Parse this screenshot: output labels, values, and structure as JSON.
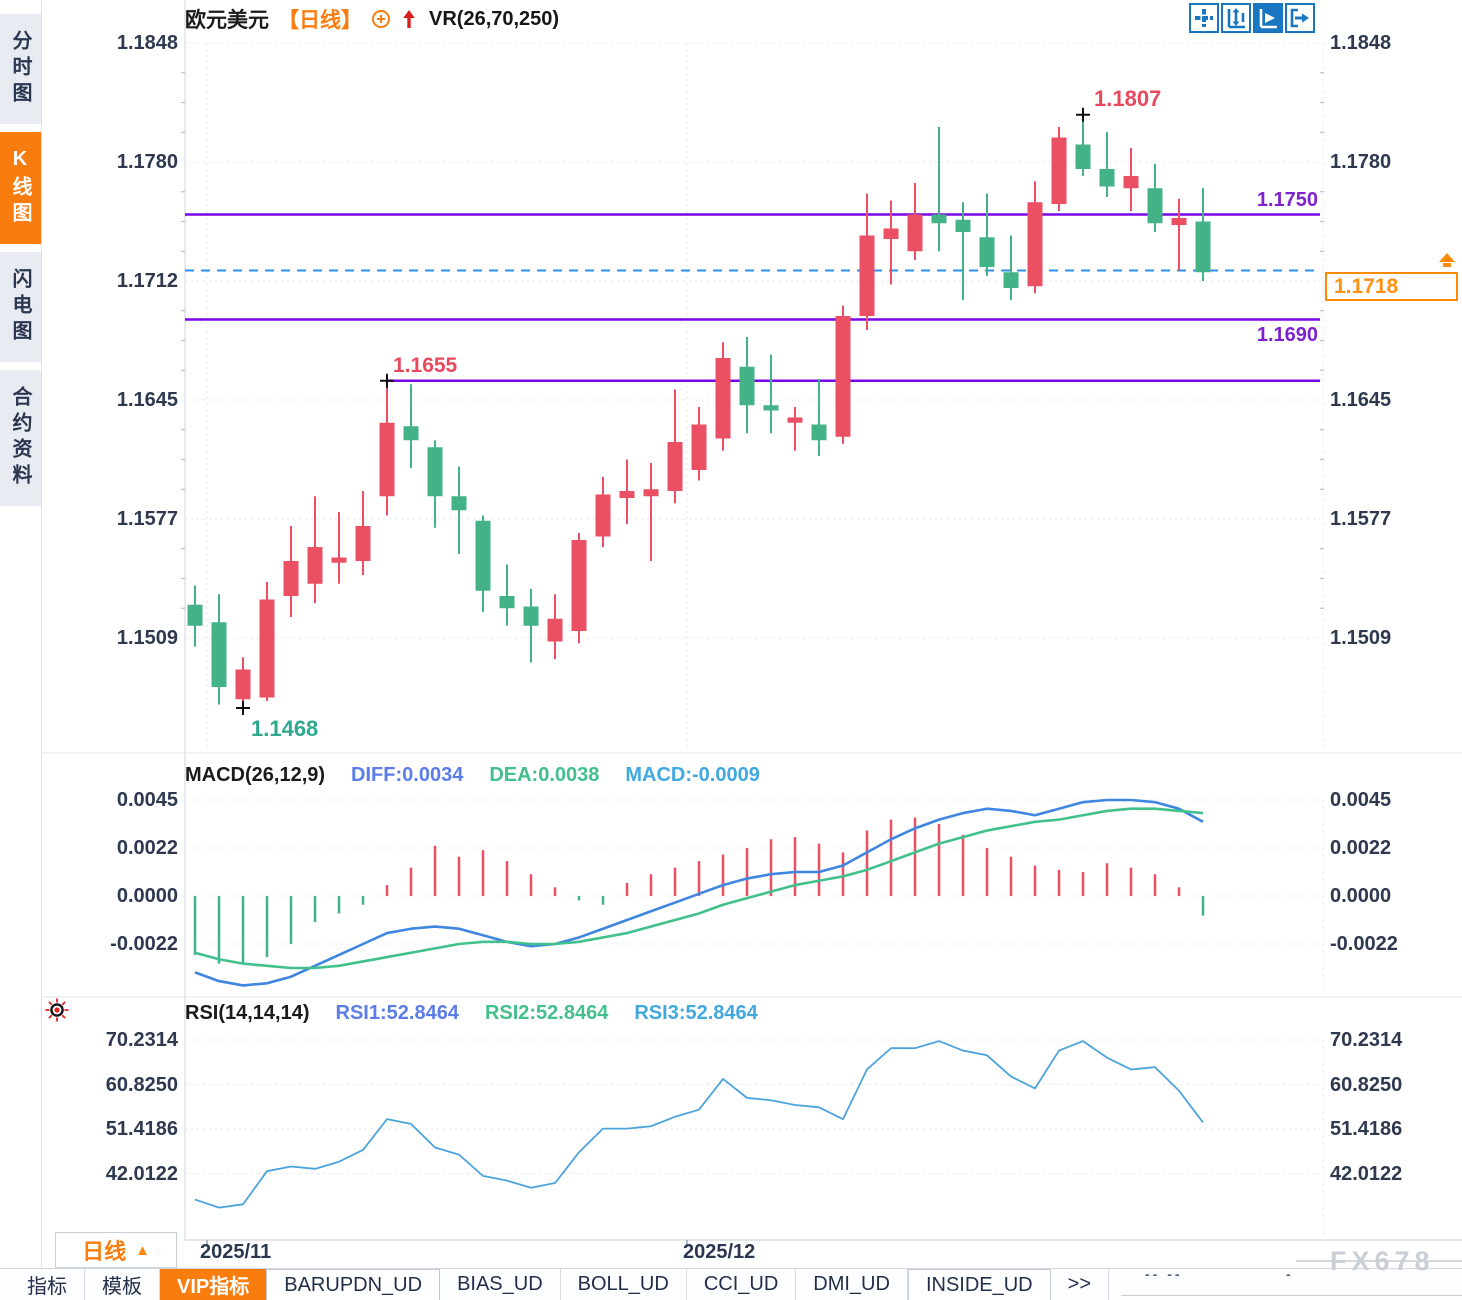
{
  "app": {
    "symbol": "欧元美元",
    "period_tag": "【日线】",
    "vr_label": "VR(26,70,250)",
    "watermark": "FX678"
  },
  "sidebar": {
    "items": [
      {
        "label": "分时图",
        "active": false
      },
      {
        "label": "K线图",
        "active": true
      },
      {
        "label": "闪电图",
        "active": false
      },
      {
        "label": "合约资料",
        "active": false
      }
    ]
  },
  "toolbar_icons": [
    {
      "name": "pan-crosshair-icon",
      "active": false
    },
    {
      "name": "fit-y-axis-icon",
      "active": false
    },
    {
      "name": "auto-scale-icon",
      "active": true
    },
    {
      "name": "jump-to-latest-icon",
      "active": false
    }
  ],
  "price_box": {
    "value": "1.1718"
  },
  "timeframe_button": {
    "label": "日线",
    "arrow": "▲"
  },
  "bottom_tabs": [
    {
      "label": "指标"
    },
    {
      "label": "模板"
    },
    {
      "label": "VIP指标",
      "active": true
    },
    {
      "label": "BARUPDN_UD"
    },
    {
      "label": "BIAS_UD"
    },
    {
      "label": "BOLL_UD"
    },
    {
      "label": "CCI_UD"
    },
    {
      "label": "DMI_UD"
    },
    {
      "label": "INSIDE_UD"
    },
    {
      "label": ">>"
    }
  ],
  "stray_marks": [
    {
      "text": "-- --"
    },
    {
      "text": "-"
    }
  ],
  "chart_data": {
    "type": "candlestick",
    "title": "欧元美元 日线 (EUR/USD daily)",
    "x_axis": {
      "labels": [
        {
          "text": "2025/11",
          "grid_index": 0.5
        },
        {
          "text": "2025/12",
          "grid_index": 20.5
        }
      ]
    },
    "main": {
      "y_ticks": [
        "1.1848",
        "1.1780",
        "1.1712",
        "1.1645",
        "1.1577",
        "1.1509"
      ],
      "ylim": [
        1.1448,
        1.1848
      ],
      "candles": [
        [
          1.1527,
          1.1538,
          1.1503,
          1.1515
        ],
        [
          1.1517,
          1.1533,
          1.147,
          1.148
        ],
        [
          1.1473,
          1.1497,
          1.1468,
          1.149
        ],
        [
          1.1474,
          1.154,
          1.1472,
          1.153
        ],
        [
          1.1532,
          1.1572,
          1.152,
          1.1552
        ],
        [
          1.1539,
          1.1589,
          1.1528,
          1.156
        ],
        [
          1.1551,
          1.158,
          1.1539,
          1.1554
        ],
        [
          1.1552,
          1.1592,
          1.1544,
          1.1572
        ],
        [
          1.1589,
          1.1655,
          1.1578,
          1.1631
        ],
        [
          1.1629,
          1.1653,
          1.1605,
          1.1621
        ],
        [
          1.1617,
          1.1621,
          1.1571,
          1.1589
        ],
        [
          1.1589,
          1.1606,
          1.1556,
          1.1581
        ],
        [
          1.1575,
          1.1578,
          1.1523,
          1.1535
        ],
        [
          1.1532,
          1.155,
          1.1515,
          1.1525
        ],
        [
          1.1526,
          1.1536,
          1.1494,
          1.1515
        ],
        [
          1.1506,
          1.1533,
          1.1496,
          1.1519
        ],
        [
          1.1512,
          1.1568,
          1.1505,
          1.1564
        ],
        [
          1.1566,
          1.16,
          1.156,
          1.159
        ],
        [
          1.1588,
          1.161,
          1.1573,
          1.1592
        ],
        [
          1.1589,
          1.1608,
          1.1552,
          1.1593
        ],
        [
          1.1592,
          1.165,
          1.1585,
          1.162
        ],
        [
          1.1604,
          1.164,
          1.1598,
          1.163
        ],
        [
          1.1622,
          1.1677,
          1.1615,
          1.1668
        ],
        [
          1.1663,
          1.168,
          1.1625,
          1.1641
        ],
        [
          1.1641,
          1.167,
          1.1625,
          1.1638
        ],
        [
          1.1631,
          1.164,
          1.1615,
          1.1634
        ],
        [
          1.163,
          1.1656,
          1.1612,
          1.1621
        ],
        [
          1.1623,
          1.1698,
          1.1619,
          1.1692
        ],
        [
          1.1692,
          1.1762,
          1.1684,
          1.1738
        ],
        [
          1.1736,
          1.1758,
          1.171,
          1.1742
        ],
        [
          1.1729,
          1.1768,
          1.1724,
          1.175
        ],
        [
          1.175,
          1.18,
          1.1729,
          1.1745
        ],
        [
          1.1747,
          1.1757,
          1.1701,
          1.174
        ],
        [
          1.1737,
          1.1762,
          1.1715,
          1.172
        ],
        [
          1.1717,
          1.1738,
          1.1701,
          1.1708
        ],
        [
          1.1709,
          1.1769,
          1.1705,
          1.1757
        ],
        [
          1.1756,
          1.18,
          1.1752,
          1.1794
        ],
        [
          1.179,
          1.1807,
          1.1772,
          1.1776
        ],
        [
          1.1776,
          1.1797,
          1.176,
          1.1766
        ],
        [
          1.1765,
          1.1788,
          1.1752,
          1.1772
        ],
        [
          1.1765,
          1.1779,
          1.174,
          1.1745
        ],
        [
          1.1744,
          1.1759,
          1.1718,
          1.1748
        ],
        [
          1.1746,
          1.1765,
          1.1712,
          1.1717
        ]
      ],
      "levels": [
        {
          "price": 1.175,
          "style": "solid",
          "color": "purple",
          "label": "1.1750"
        },
        {
          "price": 1.169,
          "style": "solid",
          "color": "purple",
          "label": "1.1690"
        },
        {
          "price": 1.1655,
          "style": "solid",
          "color": "purple",
          "label": "",
          "start_index": 8
        },
        {
          "price": 1.1718,
          "style": "dashed",
          "color": "blue",
          "label": ""
        }
      ],
      "annotations": [
        {
          "text": "1.1807",
          "index": 37,
          "price": 1.1807,
          "position": "high"
        },
        {
          "text": "1.1655",
          "index": 8,
          "price": 1.1655,
          "position": "high"
        },
        {
          "text": "1.1468",
          "index": 2,
          "price": 1.1468,
          "position": "low"
        }
      ],
      "last_price": 1.1718
    },
    "macd": {
      "header": {
        "name": "MACD(26,12,9)",
        "diff": "DIFF:0.0034",
        "dea": "DEA:0.0038",
        "macd": "MACD:-0.0009"
      },
      "y_ticks": [
        "0.0045",
        "0.0022",
        "0.0000",
        "-0.0022"
      ],
      "histogram": [
        -0.0027,
        -0.0031,
        -0.0031,
        -0.0028,
        -0.0022,
        -0.0012,
        -0.0008,
        -0.0004,
        0.0005,
        0.0013,
        0.0023,
        0.0018,
        0.0021,
        0.0016,
        0.001,
        0.0004,
        -0.0002,
        -0.0004,
        0.0006,
        0.001,
        0.0013,
        0.0016,
        0.0019,
        0.0022,
        0.0026,
        0.0027,
        0.0024,
        0.002,
        0.003,
        0.0035,
        0.0036,
        0.0033,
        0.0028,
        0.0022,
        0.0018,
        0.0014,
        0.0012,
        0.0011,
        0.0015,
        0.0013,
        0.001,
        0.0004,
        -0.0009
      ],
      "diff": [
        -0.0035,
        -0.0039,
        -0.0041,
        -0.004,
        -0.0037,
        -0.0032,
        -0.0027,
        -0.0022,
        -0.0017,
        -0.0015,
        -0.0014,
        -0.0015,
        -0.0018,
        -0.0021,
        -0.0023,
        -0.0022,
        -0.0019,
        -0.0015,
        -0.0011,
        -0.0007,
        -0.0003,
        0.0001,
        0.0005,
        0.0008,
        0.001,
        0.0011,
        0.0011,
        0.0014,
        0.002,
        0.0026,
        0.0031,
        0.0035,
        0.0038,
        0.004,
        0.0039,
        0.0037,
        0.004,
        0.0043,
        0.0044,
        0.0044,
        0.0043,
        0.004,
        0.0034
      ],
      "dea": [
        -0.0026,
        -0.0029,
        -0.0031,
        -0.0032,
        -0.0033,
        -0.0033,
        -0.0032,
        -0.003,
        -0.0028,
        -0.0026,
        -0.0024,
        -0.0022,
        -0.0021,
        -0.0021,
        -0.0022,
        -0.0022,
        -0.0021,
        -0.0019,
        -0.0017,
        -0.0014,
        -0.0011,
        -0.0008,
        -0.0004,
        -0.0001,
        0.0002,
        0.0005,
        0.0007,
        0.0009,
        0.0012,
        0.0016,
        0.002,
        0.0024,
        0.0027,
        0.003,
        0.0032,
        0.0034,
        0.0035,
        0.0037,
        0.0039,
        0.004,
        0.004,
        0.0039,
        0.0038
      ]
    },
    "rsi": {
      "header": {
        "name": "RSI(14,14,14)",
        "rsi1": "RSI1:52.8464",
        "rsi2": "RSI2:52.8464",
        "rsi3": "RSI3:52.8464"
      },
      "y_ticks": [
        "70.2314",
        "60.8250",
        "51.4186",
        "42.0122"
      ],
      "rsi1": [
        36.5,
        34.8,
        35.5,
        42.5,
        43.5,
        43.0,
        44.5,
        47.0,
        53.5,
        52.5,
        47.5,
        46.0,
        41.5,
        40.5,
        39.0,
        40.0,
        46.5,
        51.5,
        51.5,
        52.0,
        54.0,
        55.5,
        62.0,
        58.0,
        57.5,
        56.5,
        56.0,
        53.5,
        64.0,
        68.5,
        68.5,
        70.0,
        68.0,
        67.0,
        62.5,
        60.0,
        68.0,
        70.0,
        66.5,
        64.0,
        64.5,
        59.5,
        52.8
      ]
    },
    "colors": {
      "up": "#ea4f63",
      "down": "#43b387",
      "purple_line": "#7a06e8",
      "dashed_blue": "#2e8df2",
      "diff_line": "#3e86e0",
      "dea_line": "#41c08c",
      "rsi_line": "#4ba3dc",
      "accent_orange": "#f87d0e",
      "grid": "#e3e4ea"
    }
  }
}
